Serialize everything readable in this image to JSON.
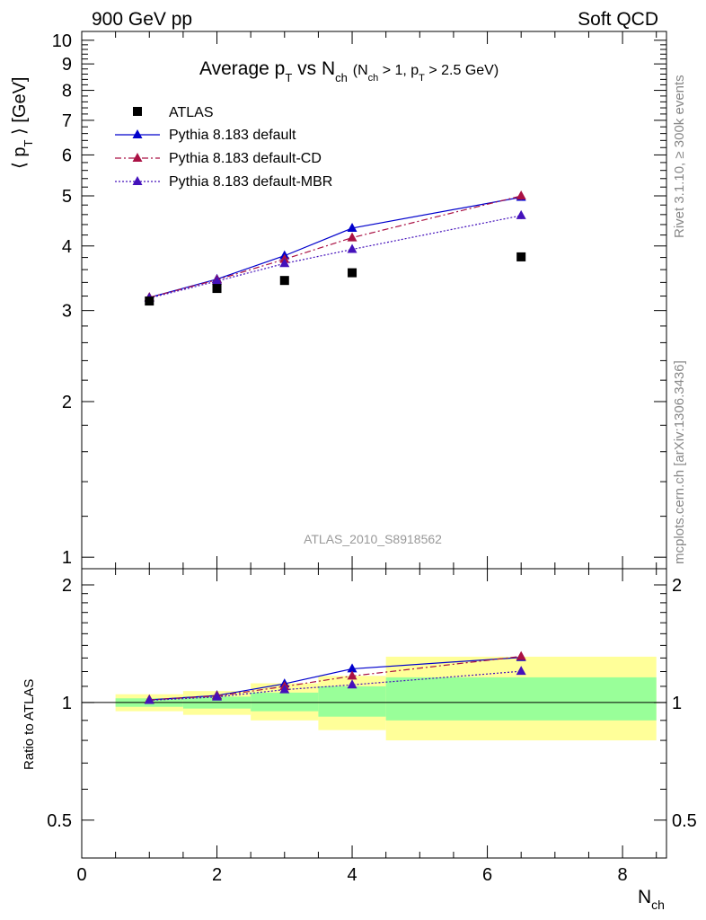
{
  "header": {
    "left": "900 GeV pp",
    "right": "Soft QCD"
  },
  "side_labels": {
    "rivet": "Rivet 3.1.10, ≥ 300k events",
    "mcplots": "mcplots.cern.ch [arXiv:1306.3436]"
  },
  "title": {
    "main": "Average p",
    "sub_t": "T",
    "vs": " vs N",
    "sub_ch": "ch",
    "cond": "(N",
    "cond_ch": "ch",
    "cond_mid": " > 1, p",
    "cond_t": "T",
    "cond_end": " > 2.5 GeV)"
  },
  "ylabel_main": {
    "open": "⟨ p",
    "sub": "T",
    "close": " ⟩  [GeV]"
  },
  "ylabel_ratio": "Ratio to ATLAS",
  "xlabel": {
    "main": "N",
    "sub": "ch"
  },
  "watermark": "ATLAS_2010_S8918562",
  "chart_data": {
    "type": "line",
    "x": [
      1,
      2,
      3,
      4,
      6.5
    ],
    "xlim": [
      0,
      8.65
    ],
    "main": {
      "ylim": [
        0.95,
        10.4
      ],
      "yticks": [
        1,
        2,
        3,
        4,
        5,
        6,
        7,
        8,
        9,
        10
      ]
    },
    "ratio": {
      "ylim": [
        0.4,
        2.2
      ],
      "yticks": [
        0.5,
        1,
        2
      ]
    },
    "xticks": [
      0,
      2,
      4,
      6,
      8
    ],
    "data": {
      "name": "ATLAS",
      "values": [
        3.13,
        3.31,
        3.43,
        3.55,
        3.81
      ],
      "color": "#000000"
    },
    "series": [
      {
        "name": "Pythia 8.183 default",
        "values": [
          3.18,
          3.45,
          3.83,
          4.33,
          4.97
        ],
        "err": [
          0.03,
          0.03,
          0.04,
          0.05,
          0.07
        ],
        "color": "#0000cc",
        "dash": ""
      },
      {
        "name": "Pythia 8.183 default-CD",
        "values": [
          3.18,
          3.44,
          3.77,
          4.15,
          5.0
        ],
        "err": [
          0.03,
          0.03,
          0.04,
          0.05,
          0.09
        ],
        "color": "#aa1144",
        "dash": "7,3,2,3"
      },
      {
        "name": "Pythia 8.183 default-MBR",
        "values": [
          3.17,
          3.42,
          3.7,
          3.94,
          4.58
        ],
        "err": [
          0.03,
          0.03,
          0.04,
          0.05,
          0.07
        ],
        "color": "#4411bb",
        "dash": "2,2"
      }
    ],
    "bands": [
      {
        "x": [
          0.5,
          1.5
        ],
        "yellow": [
          0.95,
          1.05
        ],
        "green": [
          0.975,
          1.025
        ]
      },
      {
        "x": [
          1.5,
          2.5
        ],
        "yellow": [
          0.93,
          1.07
        ],
        "green": [
          0.965,
          1.035
        ]
      },
      {
        "x": [
          2.5,
          3.5
        ],
        "yellow": [
          0.9,
          1.12
        ],
        "green": [
          0.95,
          1.06
        ]
      },
      {
        "x": [
          3.5,
          4.5
        ],
        "yellow": [
          0.85,
          1.17
        ],
        "green": [
          0.92,
          1.1
        ]
      },
      {
        "x": [
          4.5,
          8.5
        ],
        "yellow": [
          0.8,
          1.31
        ],
        "green": [
          0.9,
          1.16
        ]
      }
    ]
  }
}
